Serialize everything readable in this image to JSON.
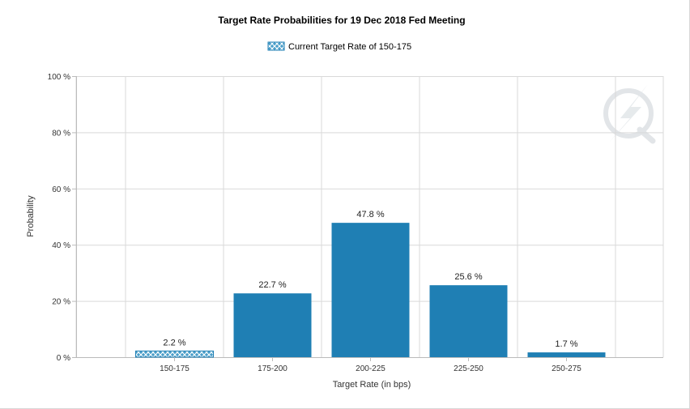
{
  "chart_data": {
    "type": "bar",
    "title": "Target Rate Probabilities for 19 Dec 2018 Fed Meeting",
    "xlabel": "Target Rate (in bps)",
    "ylabel": "Probability",
    "categories": [
      "150-175",
      "175-200",
      "200-225",
      "225-250",
      "250-275"
    ],
    "values": [
      2.2,
      22.7,
      47.8,
      25.6,
      1.7
    ],
    "data_labels": [
      "2.2 %",
      "22.7 %",
      "47.8 %",
      "25.6 %",
      "1.7 %"
    ],
    "y_ticks": [
      0,
      20,
      40,
      60,
      80,
      100
    ],
    "y_tick_labels": [
      "0 %",
      "20 %",
      "40 %",
      "60 %",
      "80 %",
      "100 %"
    ],
    "ylim": [
      0,
      100
    ],
    "grid": true,
    "legend": {
      "placement": "top-center",
      "entries": [
        {
          "label": "Current Target Rate of 150-175",
          "pattern": "crosshatch"
        }
      ]
    },
    "highlight_category_index": 0,
    "colors": {
      "bar": "#1f7fb4",
      "highlight_fill": "#4a9ec9",
      "highlight_hatch": "#ffffff",
      "grid": "#d9d9d9",
      "axis": "#bbbbbb",
      "watermark": "#dfe3e6"
    },
    "watermark_icon": "lightning-q-logo-icon"
  }
}
